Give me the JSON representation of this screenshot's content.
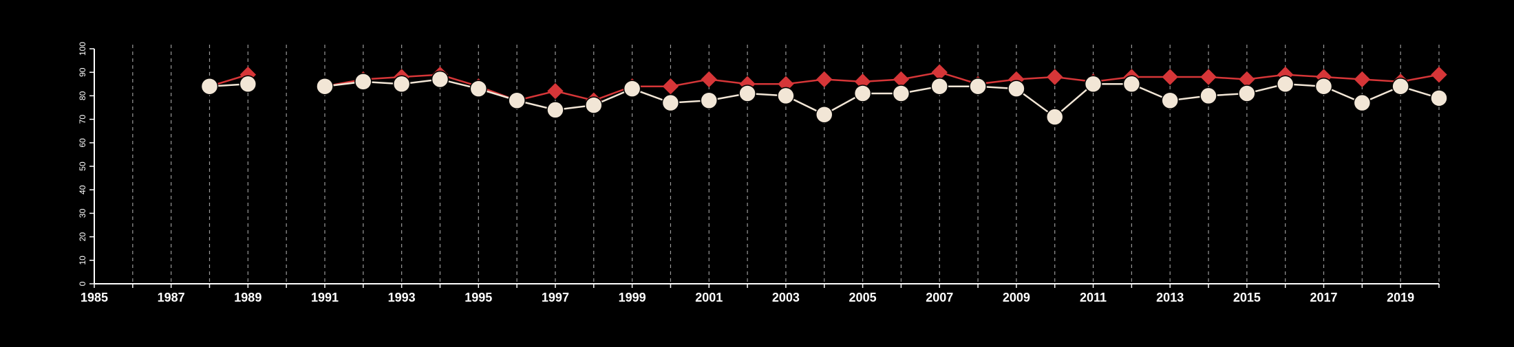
{
  "chart_data": {
    "type": "line",
    "title": "",
    "xlabel": "",
    "ylabel": "",
    "xlim": [
      1985,
      2020
    ],
    "ylim": [
      0,
      100
    ],
    "yticks": [
      "0",
      "10",
      "20",
      "30",
      "40",
      "50",
      "60",
      "70",
      "80",
      "90",
      "100"
    ],
    "xticks": [
      "1985",
      "1987",
      "1989",
      "1991",
      "1993",
      "1995",
      "1997",
      "1999",
      "2001",
      "2003",
      "2005",
      "2007",
      "2009",
      "2011",
      "2013",
      "2015",
      "2017",
      "2019"
    ],
    "grid": "vertical dashed lines at every year",
    "legend": "none",
    "series": [
      {
        "marker": "diamond",
        "color": "#d63638",
        "x": [
          1988,
          1989,
          1991,
          1992,
          1993,
          1994,
          1995,
          1996,
          1997,
          1998,
          1999,
          2000,
          2001,
          2002,
          2003,
          2004,
          2005,
          2006,
          2007,
          2008,
          2009,
          2010,
          2011,
          2012,
          2013,
          2014,
          2015,
          2016,
          2017,
          2018,
          2019,
          2020
        ],
        "values": [
          84,
          89,
          84,
          87,
          88,
          89,
          84,
          78,
          82,
          78,
          84,
          84,
          87,
          85,
          85,
          87,
          86,
          87,
          90,
          85,
          87,
          88,
          86,
          88,
          88,
          88,
          87,
          89,
          88,
          87,
          86,
          89
        ]
      },
      {
        "marker": "circle",
        "color": "#f2e6d6",
        "x": [
          1988,
          1989,
          1991,
          1992,
          1993,
          1994,
          1995,
          1996,
          1997,
          1998,
          1999,
          2000,
          2001,
          2002,
          2003,
          2004,
          2005,
          2006,
          2007,
          2008,
          2009,
          2010,
          2011,
          2012,
          2013,
          2014,
          2015,
          2016,
          2017,
          2018,
          2019,
          2020
        ],
        "values": [
          84,
          85,
          84,
          86,
          85,
          87,
          83,
          78,
          74,
          76,
          83,
          77,
          78,
          81,
          80,
          72,
          81,
          81,
          84,
          84,
          83,
          71,
          85,
          85,
          78,
          80,
          81,
          85,
          84,
          77,
          84,
          79
        ]
      }
    ],
    "segments": [
      [
        1988,
        1989
      ],
      [
        1991,
        2020
      ]
    ]
  }
}
